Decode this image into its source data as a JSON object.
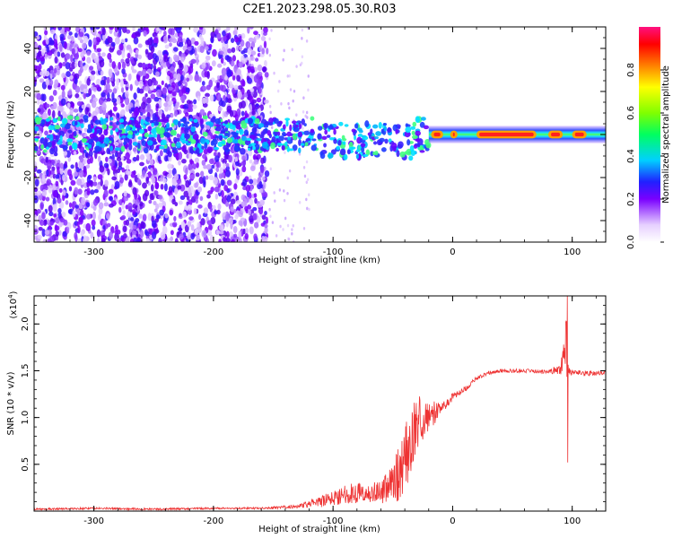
{
  "title": "C2E1.2023.298.05.30.R03",
  "colors": {
    "snr_line": "#ee3333",
    "spectrogram_base": "#7a00ff"
  },
  "spectrogram": {
    "xlabel": "Height of straight line (km)",
    "ylabel": "Frequency (Hz)",
    "xlim": [
      -350,
      128
    ],
    "ylim": [
      -50,
      50
    ],
    "xticks": [
      -300,
      -200,
      -100,
      0,
      100
    ],
    "yticks": [
      -40,
      -20,
      0,
      20,
      40
    ],
    "colorbar": {
      "label": "Normalized spectral amplitude",
      "range": [
        0.0,
        1.0
      ],
      "ticks": [
        0.0,
        0.2,
        0.4,
        0.6,
        0.8
      ]
    }
  },
  "chart_data": {
    "type": "line",
    "title": "C2E1.2023.298.05.30.R03",
    "xlabel": "Height of straight line (km)",
    "ylabel": "SNR (10 * v/v)",
    "ylabel_scale": "(x10",
    "ylabel_scale_exp": "4",
    "ylabel_scale_close": ")",
    "xlim": [
      -350,
      128
    ],
    "ylim": [
      0,
      2.3
    ],
    "xticks": [
      -300,
      -200,
      -100,
      0,
      100
    ],
    "yticks": [
      0.5,
      1.0,
      1.5,
      2.0
    ],
    "series": [
      {
        "x": [
          -350,
          -300,
          -250,
          -200,
          -160,
          -130,
          -110,
          -90,
          -80,
          -70,
          -60,
          -50,
          -45,
          -40,
          -35,
          -30,
          -25,
          -20,
          -15,
          -10,
          -5,
          0,
          10,
          20,
          30,
          40,
          60,
          80,
          90,
          95,
          97,
          100,
          110,
          128
        ],
        "y": [
          0.02,
          0.03,
          0.02,
          0.03,
          0.03,
          0.05,
          0.1,
          0.18,
          0.2,
          0.18,
          0.22,
          0.3,
          0.4,
          0.55,
          0.75,
          0.95,
          1.0,
          1.05,
          1.05,
          1.1,
          1.15,
          1.22,
          1.3,
          1.42,
          1.48,
          1.5,
          1.5,
          1.49,
          1.52,
          1.75,
          1.5,
          1.48,
          1.47,
          1.48
        ],
        "noise": [
          0.01,
          0.01,
          0.01,
          0.01,
          0.01,
          0.02,
          0.06,
          0.1,
          0.12,
          0.1,
          0.14,
          0.2,
          0.3,
          0.35,
          0.35,
          0.3,
          0.25,
          0.2,
          0.12,
          0.08,
          0.05,
          0.04,
          0.03,
          0.02,
          0.02,
          0.02,
          0.02,
          0.02,
          0.06,
          0.35,
          0.06,
          0.03,
          0.03,
          0.02
        ]
      }
    ],
    "grid": false
  }
}
